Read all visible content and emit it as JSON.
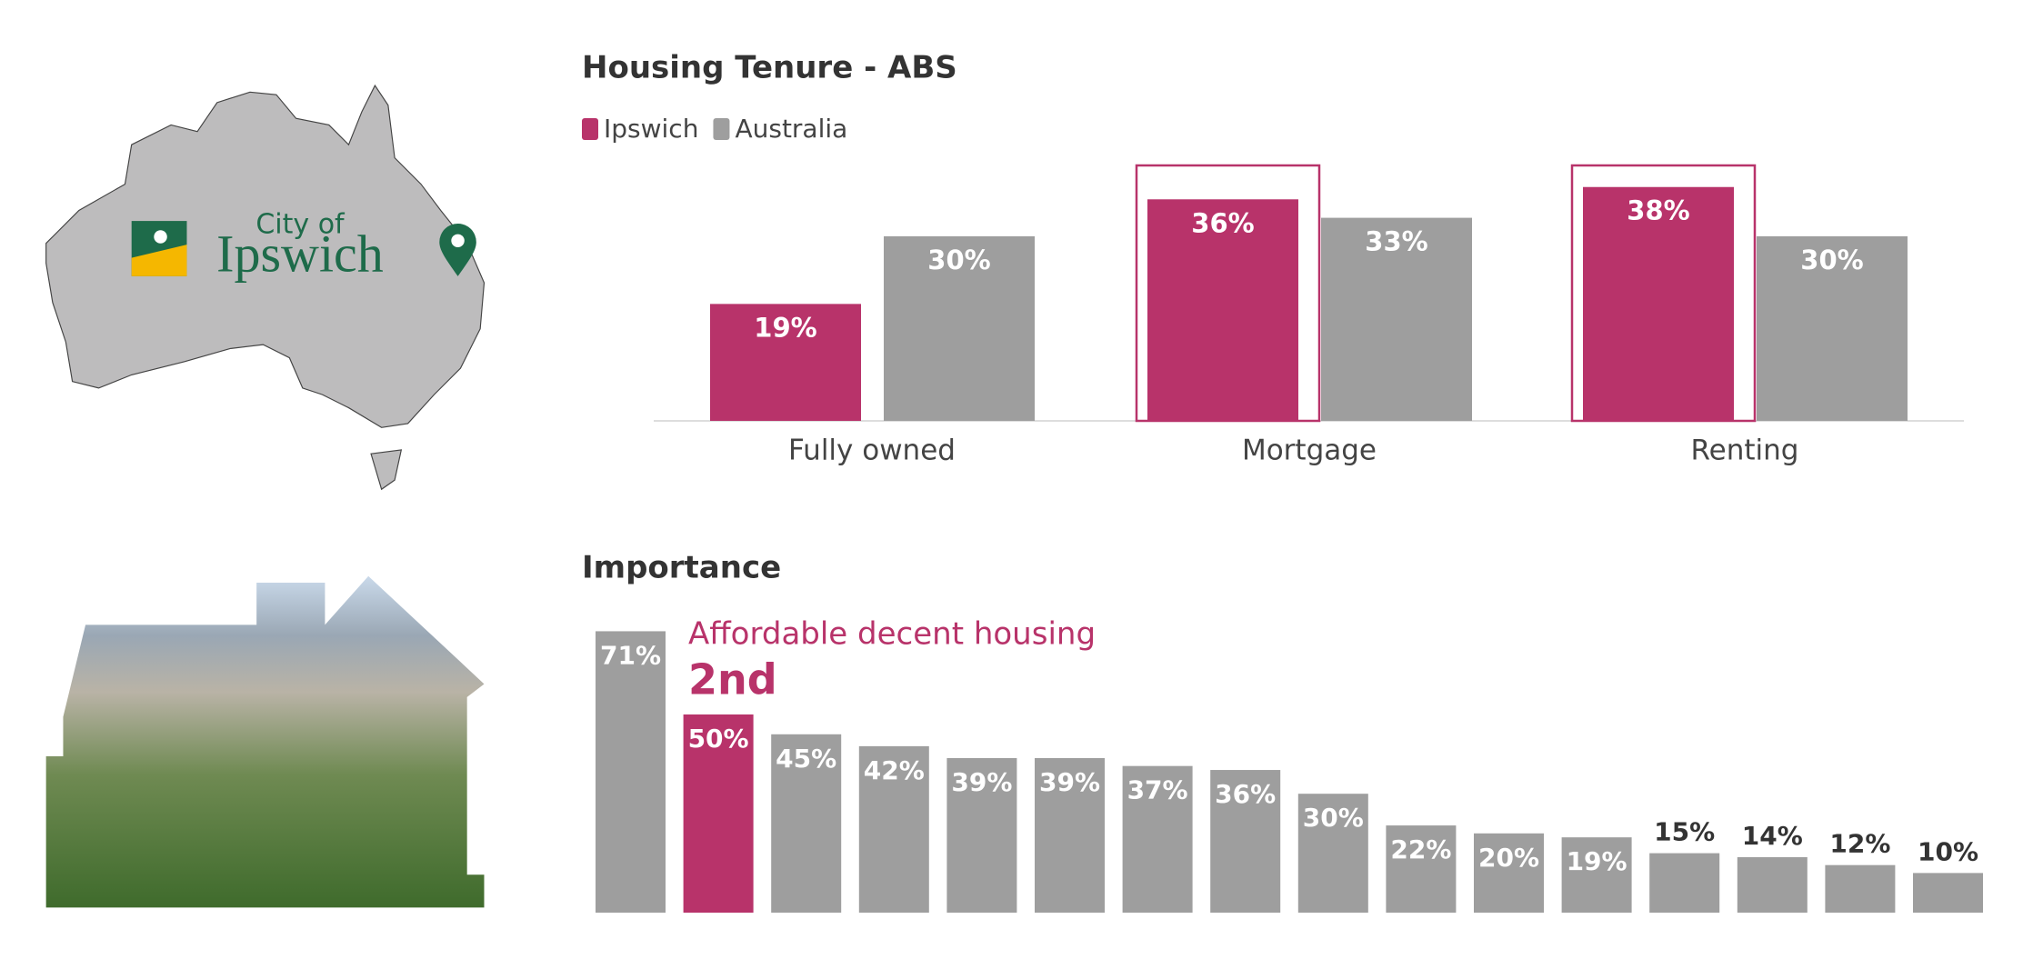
{
  "logo": {
    "line1": "City of",
    "line2": "Ipswich"
  },
  "chart_data": [
    {
      "type": "grouped-bar",
      "title": "Housing Tenure - ABS",
      "categories": [
        "Fully owned",
        "Mortgage",
        "Renting"
      ],
      "series": [
        {
          "name": "Ipswich",
          "color": "#b8336a",
          "values": [
            19,
            36,
            38
          ],
          "value_labels": [
            "19%",
            "36%",
            "38%"
          ]
        },
        {
          "name": "Australia",
          "color": "#9e9e9e",
          "values": [
            30,
            33,
            30
          ],
          "value_labels": [
            "30%",
            "33%",
            "30%"
          ]
        }
      ],
      "highlighted_categories": [
        1,
        2
      ],
      "legend": "top-left"
    },
    {
      "type": "bar",
      "title": "Importance",
      "annotation": "Affordable decent housing",
      "annotation_rank": "2nd",
      "categories": [
        null,
        null,
        null,
        null,
        null,
        null,
        null,
        null,
        null,
        null,
        null,
        null,
        null,
        null,
        null,
        null
      ],
      "values": [
        71,
        50,
        45,
        42,
        39,
        39,
        37,
        36,
        30,
        22,
        20,
        19,
        15,
        14,
        12,
        10
      ],
      "value_labels": [
        "71%",
        "50%",
        "45%",
        "42%",
        "39%",
        "39%",
        "37%",
        "36%",
        "30%",
        "22%",
        "20%",
        "19%",
        "15%",
        "14%",
        "12%",
        "10%"
      ],
      "colors": [
        "#9e9e9e",
        "#b8336a",
        "#9e9e9e",
        "#9e9e9e",
        "#9e9e9e",
        "#9e9e9e",
        "#9e9e9e",
        "#9e9e9e",
        "#9e9e9e",
        "#9e9e9e",
        "#9e9e9e",
        "#9e9e9e",
        "#9e9e9e",
        "#9e9e9e",
        "#9e9e9e",
        "#9e9e9e"
      ],
      "highlight_color": "#b8336a"
    }
  ]
}
